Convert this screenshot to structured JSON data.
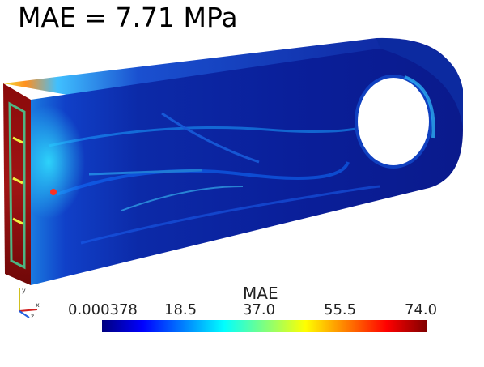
{
  "title": "MAE = 7.71 MPa",
  "colorbar": {
    "title": "MAE",
    "ticks": [
      "0.000378",
      "18.5",
      "37.0",
      "55.5",
      "74.0"
    ],
    "range": [
      0.000378,
      74.0
    ],
    "colormap": [
      "#00007f",
      "#0000ff",
      "#007fff",
      "#00ffff",
      "#7fff7f",
      "#ffff00",
      "#ff7f00",
      "#ff0000",
      "#7f0000"
    ]
  },
  "axes_triad": {
    "x_label": "x",
    "y_label": "y",
    "z_label": "z"
  },
  "colors": {
    "background_part": "#0a1a9a",
    "hot_end": "#a01414"
  }
}
